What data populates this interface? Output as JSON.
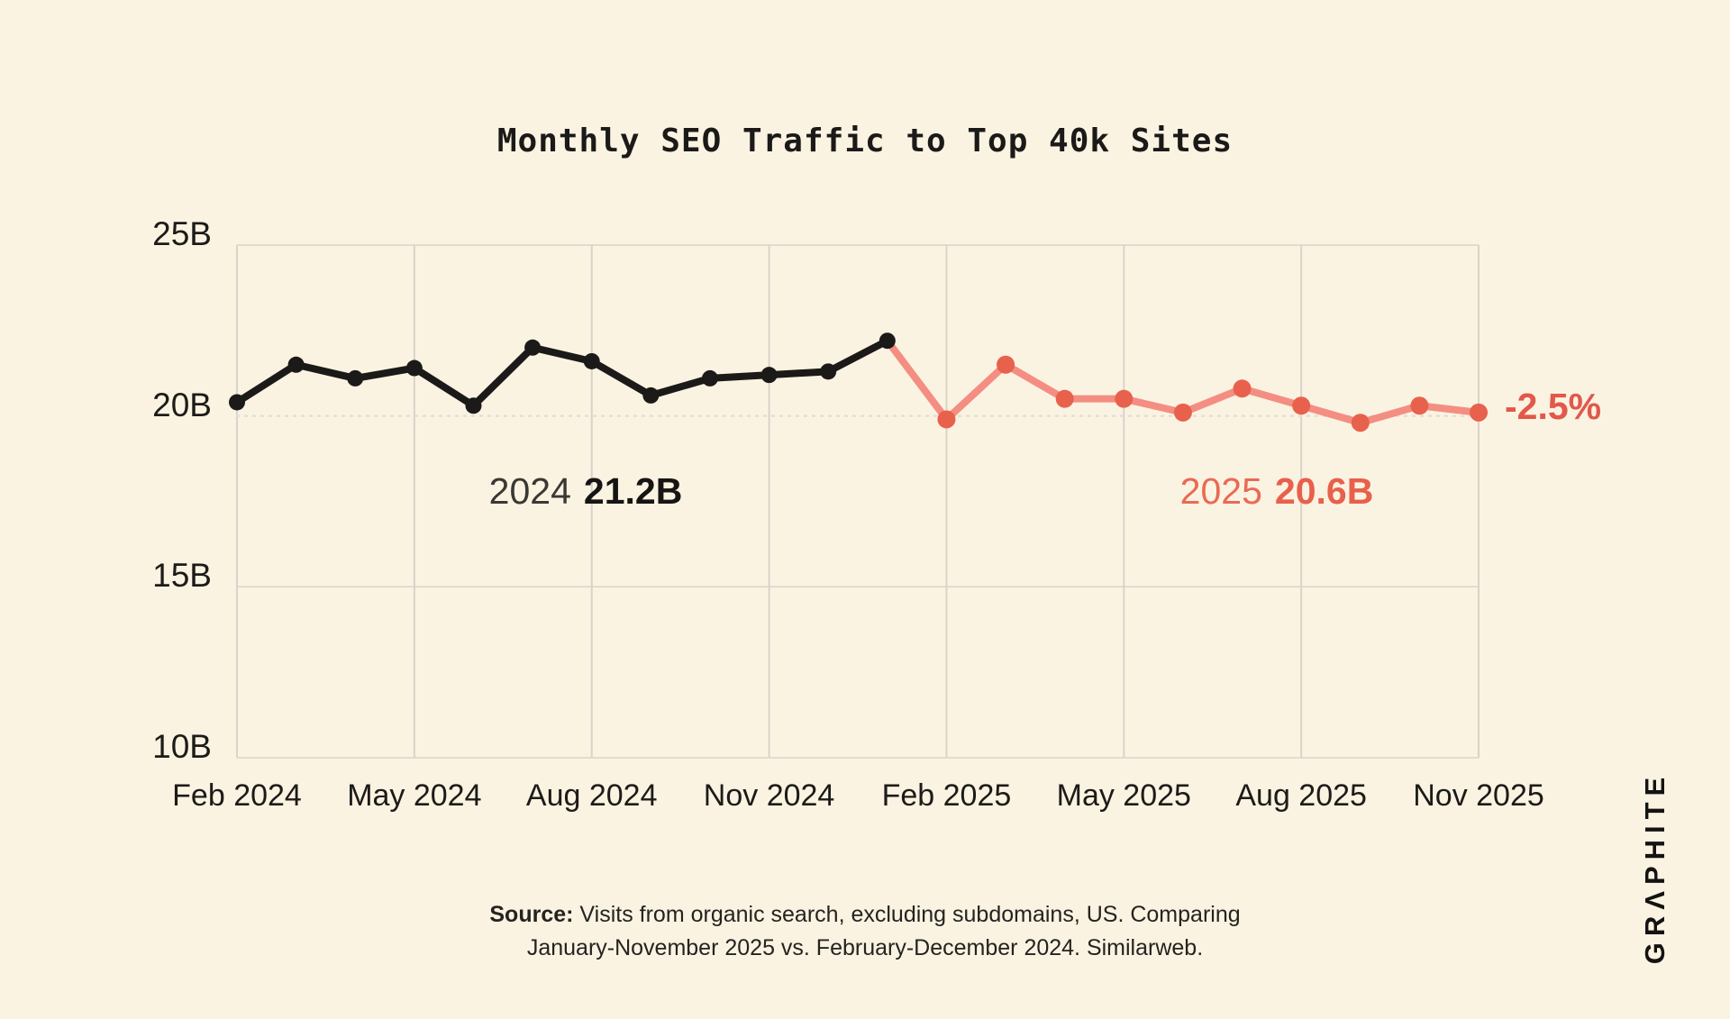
{
  "title": "Monthly SEO Traffic to Top 40k Sites",
  "brand_logo": "GRΛPHITE",
  "annotations": {
    "avg_2024_year": "2024",
    "avg_2024_value": "21.2B",
    "avg_2025_year": "2025",
    "avg_2025_value": "20.6B",
    "pct_change": "-2.5%"
  },
  "source": {
    "label": "Source:",
    "line1": "Visits from organic search, excluding subdomains, US. Comparing",
    "line2": "January-November 2025 vs. February-December 2024. Similarweb."
  },
  "colors": {
    "background": "#FBF3E2",
    "black_line": "#1B1A18",
    "black_dot": "#1B1A18",
    "red_line": "#F48E82",
    "red_dot": "#E8614C",
    "red_text": "#E2584A",
    "grid": "#D8D4CA",
    "grid_dotted": "#E3DFD4"
  },
  "chart_data": {
    "type": "line",
    "title": "Monthly SEO Traffic to Top 40k Sites",
    "xlabel": "",
    "ylabel": "",
    "unit": "billions of visits",
    "ylim": [
      10,
      25
    ],
    "grid": "vertical-quarterly-and-horizontal-ticks",
    "legend_position": "none",
    "yticks": [
      {
        "label": "25B",
        "value": 25
      },
      {
        "label": "20B",
        "value": 20
      },
      {
        "label": "15B",
        "value": 15
      },
      {
        "label": "10B",
        "value": 10
      }
    ],
    "xticks": [
      {
        "label": "Feb 2024",
        "index": 0
      },
      {
        "label": "May 2024",
        "index": 3
      },
      {
        "label": "Aug 2024",
        "index": 6
      },
      {
        "label": "Nov 2024",
        "index": 9
      },
      {
        "label": "Feb 2025",
        "index": 12
      },
      {
        "label": "May 2025",
        "index": 15
      },
      {
        "label": "Aug 2025",
        "index": 18
      },
      {
        "label": "Nov 2025",
        "index": 21
      }
    ],
    "series": [
      {
        "name": "2024",
        "average_label": "21.2B",
        "line_color": "#1B1A18",
        "dot_color": "#1B1A18",
        "start_index": 0,
        "months": [
          "Feb 2024",
          "Mar 2024",
          "Apr 2024",
          "May 2024",
          "Jun 2024",
          "Jul 2024",
          "Aug 2024",
          "Sep 2024",
          "Oct 2024",
          "Nov 2024",
          "Dec 2024",
          "Jan 2025"
        ],
        "values": [
          20.4,
          21.5,
          21.1,
          21.4,
          20.3,
          22.0,
          21.6,
          20.6,
          21.1,
          21.2,
          21.3,
          22.2
        ]
      },
      {
        "name": "2025",
        "average_label": "20.6B",
        "line_color": "#F48E82",
        "dot_color": "#E8614C",
        "start_index": 11,
        "months": [
          "Jan 2025",
          "Feb 2025",
          "Mar 2025",
          "Apr 2025",
          "May 2025",
          "Jun 2025",
          "Jul 2025",
          "Aug 2025",
          "Sep 2025",
          "Oct 2025",
          "Nov 2025"
        ],
        "values": [
          22.2,
          19.9,
          21.5,
          20.5,
          20.5,
          20.1,
          20.8,
          20.3,
          19.8,
          20.3,
          20.1
        ]
      }
    ],
    "annotation_pct_change": "-2.5%"
  }
}
